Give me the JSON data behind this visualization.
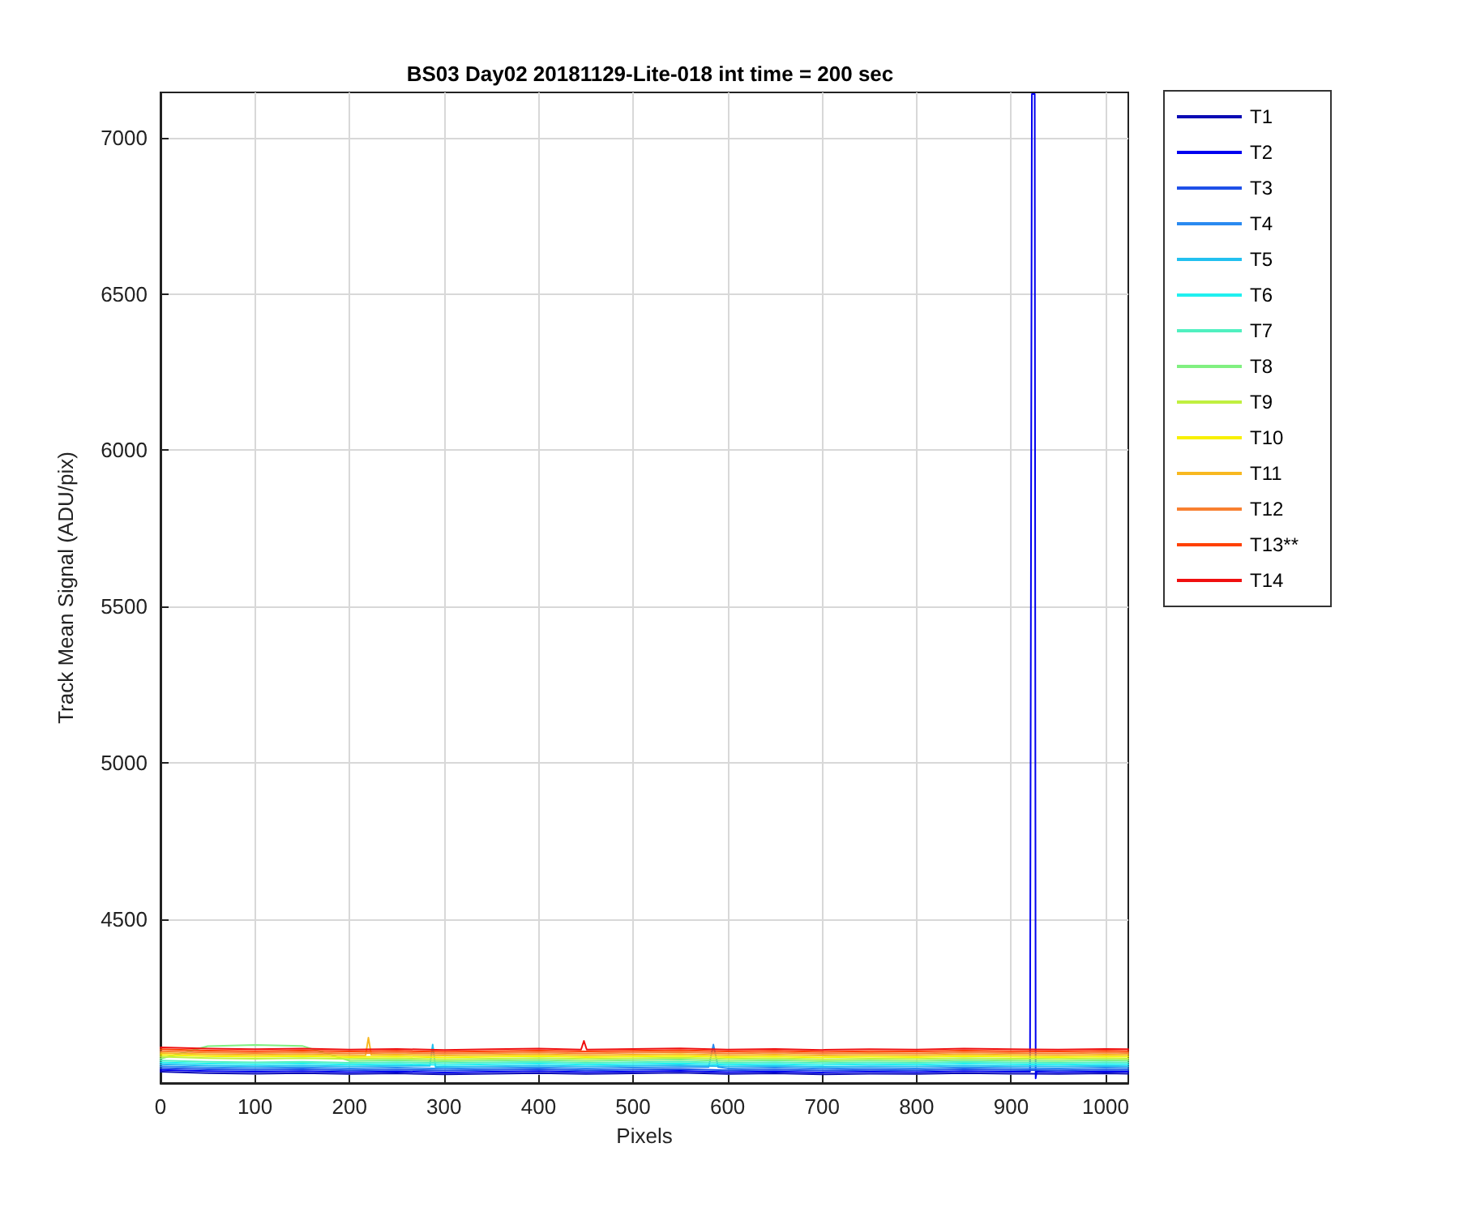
{
  "chart_data": {
    "type": "line",
    "title": "BS03 Day02 20181129-Lite-018 int time = 200 sec",
    "xlabel": "Pixels",
    "ylabel": "Track Mean Signal (ADU/pix)",
    "xlim": [
      0,
      1024
    ],
    "xticks": [
      0,
      100,
      200,
      300,
      400,
      500,
      600,
      700,
      800,
      900,
      1000
    ],
    "ylim": [
      3975,
      7145
    ],
    "yticks": [
      4500,
      5000,
      5500,
      6000,
      6500,
      7000
    ],
    "grid": true,
    "legend": "right",
    "marker": "none",
    "line_style": "solid",
    "x": [
      0,
      50,
      100,
      150,
      200,
      250,
      300,
      350,
      400,
      450,
      500,
      550,
      600,
      650,
      700,
      750,
      800,
      850,
      900,
      950,
      1000,
      1024
    ],
    "series": [
      {
        "name": "T1",
        "color": "#0a0ab4",
        "values": [
          4011,
          4007,
          4005,
          4007,
          4004,
          4006,
          4003,
          4005,
          4007,
          4004,
          4006,
          4008,
          4004,
          4006,
          4003,
          4005,
          4004,
          4007,
          4005,
          4004,
          4006,
          4005
        ]
      },
      {
        "name": "T2",
        "color": "#0000f0",
        "x": [
          0,
          50,
          100,
          150,
          200,
          250,
          300,
          350,
          400,
          450,
          500,
          550,
          600,
          650,
          700,
          750,
          800,
          850,
          900,
          920,
          922,
          925,
          926,
          927,
          950,
          1000,
          1024
        ],
        "values": [
          4017,
          4013,
          4011,
          4013,
          4010,
          4012,
          4009,
          4011,
          4013,
          4010,
          4012,
          4014,
          4010,
          4012,
          4009,
          4011,
          4010,
          4013,
          4011,
          4011,
          7140,
          7140,
          3990,
          4011,
          4010,
          4012,
          4011
        ]
      },
      {
        "name": "T3",
        "color": "#1f50e8",
        "values": [
          4023,
          4019,
          4017,
          4019,
          4016,
          4018,
          4015,
          4017,
          4019,
          4016,
          4018,
          4020,
          4016,
          4018,
          4015,
          4017,
          4016,
          4019,
          4017,
          4016,
          4018,
          4017
        ]
      },
      {
        "name": "T4",
        "color": "#2a8af0",
        "x": [
          0,
          50,
          100,
          150,
          200,
          250,
          300,
          350,
          400,
          450,
          500,
          550,
          580,
          585,
          590,
          600,
          650,
          700,
          750,
          800,
          850,
          900,
          950,
          1000,
          1024
        ],
        "values": [
          4029,
          4025,
          4023,
          4025,
          4022,
          4024,
          4021,
          4023,
          4025,
          4022,
          4024,
          4026,
          4026,
          4098,
          4026,
          4022,
          4024,
          4021,
          4023,
          4022,
          4025,
          4023,
          4022,
          4024,
          4023
        ]
      },
      {
        "name": "T5",
        "color": "#22c0f0",
        "x": [
          0,
          50,
          100,
          150,
          200,
          250,
          285,
          288,
          291,
          300,
          350,
          400,
          450,
          500,
          550,
          600,
          650,
          700,
          750,
          800,
          850,
          900,
          950,
          1000,
          1024
        ],
        "values": [
          4035,
          4031,
          4029,
          4031,
          4028,
          4030,
          4030,
          4098,
          4027,
          4027,
          4029,
          4031,
          4028,
          4030,
          4032,
          4028,
          4030,
          4027,
          4029,
          4028,
          4031,
          4029,
          4028,
          4030,
          4029
        ]
      },
      {
        "name": "T6",
        "color": "#20f0f0",
        "values": [
          4041,
          4037,
          4035,
          4037,
          4034,
          4036,
          4033,
          4035,
          4037,
          4034,
          4036,
          4038,
          4034,
          4036,
          4033,
          4035,
          4034,
          4037,
          4035,
          4034,
          4036,
          4035
        ]
      },
      {
        "name": "T7",
        "color": "#50f0c0",
        "values": [
          4047,
          4043,
          4041,
          4043,
          4040,
          4042,
          4039,
          4041,
          4043,
          4040,
          4042,
          4044,
          4040,
          4042,
          4039,
          4041,
          4040,
          4043,
          4041,
          4040,
          4042,
          4041
        ]
      },
      {
        "name": "T8",
        "color": "#80f080",
        "values": [
          4053,
          4093,
          4097,
          4094,
          4046,
          4048,
          4045,
          4047,
          4049,
          4046,
          4048,
          4050,
          4046,
          4048,
          4045,
          4047,
          4046,
          4049,
          4047,
          4046,
          4048,
          4047
        ]
      },
      {
        "name": "T9",
        "color": "#c0f040",
        "values": [
          4059,
          4055,
          4053,
          4055,
          4052,
          4054,
          4051,
          4053,
          4055,
          4052,
          4054,
          4056,
          4052,
          4054,
          4051,
          4053,
          4052,
          4055,
          4053,
          4052,
          4054,
          4053
        ]
      },
      {
        "name": "T10",
        "color": "#f8f000",
        "values": [
          4065,
          4061,
          4059,
          4061,
          4058,
          4060,
          4057,
          4059,
          4061,
          4058,
          4060,
          4062,
          4058,
          4060,
          4057,
          4059,
          4058,
          4061,
          4059,
          4058,
          4060,
          4059
        ]
      },
      {
        "name": "T11",
        "color": "#f8b820",
        "x": [
          0,
          50,
          100,
          150,
          200,
          217,
          220,
          223,
          250,
          300,
          350,
          400,
          450,
          500,
          550,
          600,
          650,
          700,
          750,
          800,
          850,
          900,
          950,
          1000,
          1024
        ],
        "values": [
          4071,
          4067,
          4065,
          4067,
          4064,
          4064,
          4120,
          4065,
          4066,
          4063,
          4065,
          4067,
          4064,
          4066,
          4068,
          4064,
          4066,
          4063,
          4065,
          4064,
          4067,
          4065,
          4064,
          4066,
          4065
        ]
      },
      {
        "name": "T12",
        "color": "#f88030",
        "values": [
          4077,
          4073,
          4071,
          4073,
          4070,
          4072,
          4069,
          4071,
          4073,
          4070,
          4072,
          4074,
          4070,
          4072,
          4069,
          4071,
          4070,
          4073,
          4071,
          4070,
          4072,
          4071
        ]
      },
      {
        "name": "T13**",
        "color": "#ff4000",
        "values": [
          4083,
          4079,
          4077,
          4079,
          4076,
          4078,
          4075,
          4077,
          4079,
          4076,
          4078,
          4080,
          4076,
          4078,
          4075,
          4077,
          4076,
          4079,
          4077,
          4076,
          4078,
          4077
        ]
      },
      {
        "name": "T14",
        "color": "#f01010",
        "x": [
          0,
          50,
          100,
          150,
          200,
          250,
          300,
          350,
          400,
          445,
          448,
          451,
          500,
          550,
          600,
          650,
          700,
          750,
          800,
          850,
          900,
          950,
          1000,
          1024
        ],
        "values": [
          4089,
          4085,
          4083,
          4085,
          4082,
          4084,
          4081,
          4083,
          4085,
          4082,
          4110,
          4082,
          4084,
          4086,
          4082,
          4084,
          4081,
          4083,
          4082,
          4085,
          4083,
          4082,
          4084,
          4083
        ]
      }
    ]
  }
}
